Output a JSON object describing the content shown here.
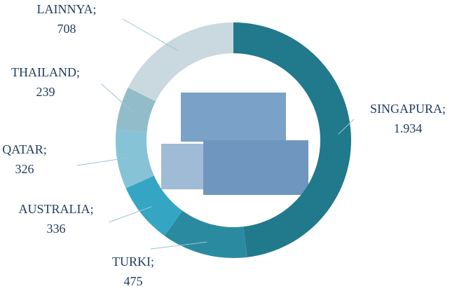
{
  "chart_data": {
    "type": "donut",
    "categories": [
      "SINGAPURA;",
      "TURKI;",
      "AUSTRALIA;",
      "QATAR;",
      "THAILAND;",
      "LAINNYA;"
    ],
    "values": [
      1934,
      475,
      336,
      326,
      239,
      708
    ],
    "value_labels": [
      "1.934",
      "475",
      "336",
      "326",
      "239",
      "708"
    ],
    "colors": [
      "#21798c",
      "#2a8ba0",
      "#34a6c4",
      "#86c3d6",
      "#93bccb",
      "#c9d9df"
    ]
  }
}
